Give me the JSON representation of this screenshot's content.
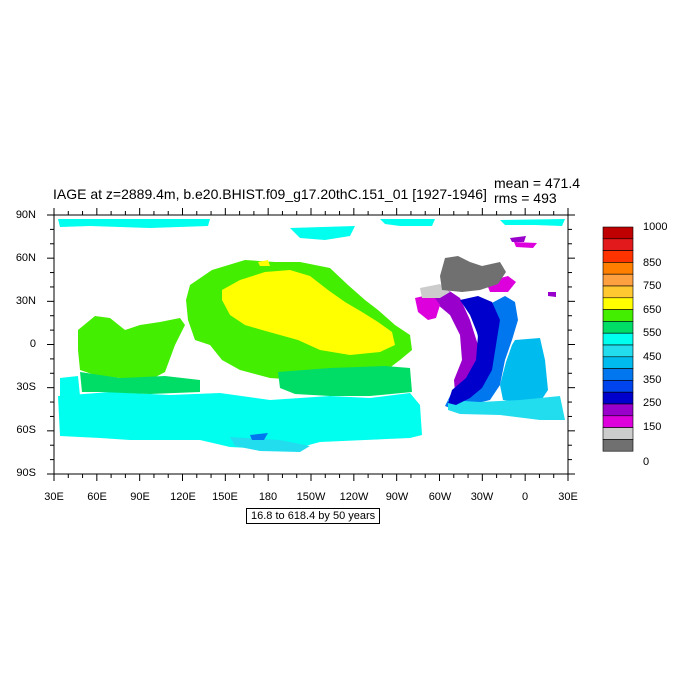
{
  "title": "IAGE at z=2889.4m, b.e20.BHIST.f09_g17.20thC.151_01 [1927-1946]",
  "stats": {
    "mean": "mean = 471.4",
    "rms": "rms = 493"
  },
  "lat_ticks": [
    "90N",
    "60N",
    "30N",
    "0",
    "30S",
    "60S",
    "90S"
  ],
  "lon_ticks": [
    "30E",
    "60E",
    "90E",
    "120E",
    "150E",
    "180",
    "150W",
    "120W",
    "90W",
    "60W",
    "30W",
    "0",
    "30E"
  ],
  "contour_info": "16.8 to 618.4 by 50 years",
  "colorbar": {
    "labels": [
      "1000",
      "850",
      "750",
      "650",
      "550",
      "450",
      "350",
      "250",
      "150",
      "0"
    ],
    "colors": [
      "#bf0000",
      "#e31a1c",
      "#ff3300",
      "#ff7f00",
      "#ffa040",
      "#ffc830",
      "#ffff00",
      "#44ee00",
      "#00dd66",
      "#00ffee",
      "#22ddee",
      "#00bbee",
      "#0077ee",
      "#0044ee",
      "#0000cc",
      "#9900cc",
      "#dd00dd",
      "#cccccc",
      "#707070"
    ]
  },
  "palette": {
    "atlantic_shallow": "#707070",
    "atlantic_light": "#cccccc",
    "atlantic_magenta": "#dd00dd",
    "atlantic_purple": "#9900cc",
    "atlantic_navy": "#0000cc",
    "atlantic_blue": "#0044ee",
    "atlantic_mid": "#0077ee",
    "atlantic_sky": "#00bbee",
    "southern_ocean": "#00ffee",
    "southern_ocean_alt": "#22ddee",
    "indian_pacific": "#44ee00",
    "pacific_core": "#ffff00",
    "south_pacific": "#00dd66"
  }
}
